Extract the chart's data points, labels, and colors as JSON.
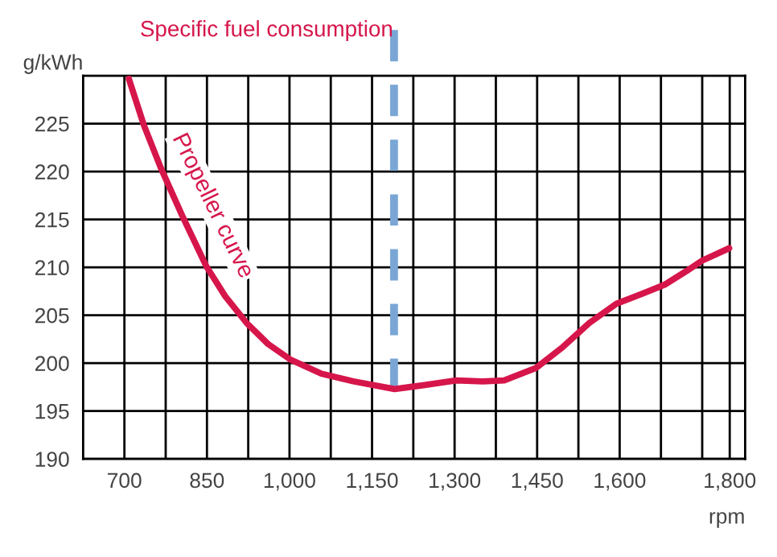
{
  "chart_data": {
    "type": "line",
    "title": "Specific fuel consumption",
    "xlabel": "rpm",
    "ylabel": "g/kWh",
    "x": [
      708,
      735,
      766,
      805,
      849,
      883,
      922,
      961,
      1001,
      1058,
      1116,
      1191,
      1243,
      1303,
      1351,
      1390,
      1448,
      1497,
      1545,
      1594,
      1643,
      1682,
      1721,
      1750,
      1799
    ],
    "series": [
      {
        "color": "#d6164b",
        "values": [
          229.7,
          224.9,
          220.4,
          215.4,
          210.1,
          207.0,
          204.2,
          202.0,
          200.4,
          198.9,
          198.1,
          197.3,
          197.7,
          198.2,
          198.1,
          198.2,
          199.5,
          201.7,
          204.2,
          206.2,
          207.3,
          208.2,
          209.6,
          210.7,
          212.0
        ]
      }
    ],
    "annotations": [
      "Propeller curve"
    ],
    "ref_lines": [
      {
        "axis": "x",
        "value": 1190,
        "color": "#7aa6d6",
        "line_style": "dashed"
      }
    ],
    "xlim": [
      625,
      1828
    ],
    "ylim": [
      190,
      230
    ],
    "xticks": [
      700,
      {
        "value": 775,
        "label": null
      },
      850,
      {
        "value": 925,
        "label": null
      },
      {
        "value": 1000,
        "label": "1,000"
      },
      {
        "value": 1075,
        "label": null
      },
      {
        "value": 1150,
        "label": "1,150"
      },
      {
        "value": 1225,
        "label": null
      },
      {
        "value": 1300,
        "label": "1,300"
      },
      {
        "value": 1375,
        "label": null
      },
      {
        "value": 1450,
        "label": "1,450"
      },
      {
        "value": 1525,
        "label": null
      },
      {
        "value": 1600,
        "label": "1,600"
      },
      {
        "value": 1675,
        "label": null
      },
      {
        "value": 1750,
        "label": null
      },
      {
        "value": 1800,
        "label": "1,800"
      }
    ],
    "yticks": [
      190,
      195,
      200,
      205,
      210,
      215,
      220,
      225
    ],
    "grid": true,
    "marker": "none",
    "line_style": "solid"
  }
}
